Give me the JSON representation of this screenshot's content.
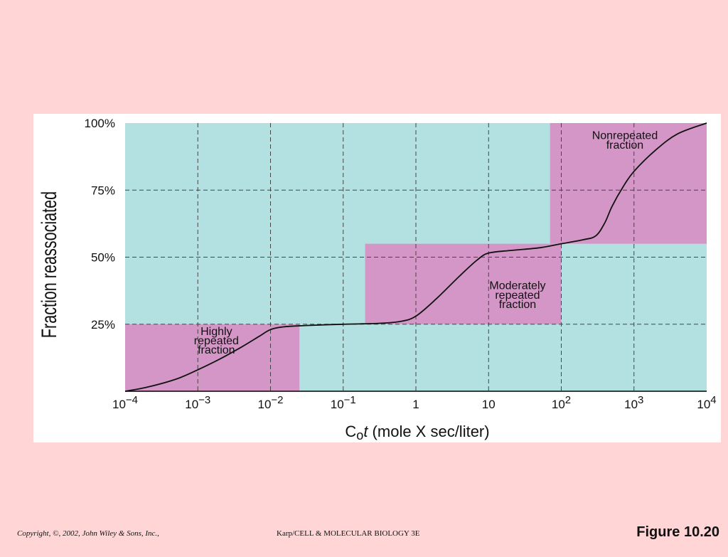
{
  "chart_data": {
    "type": "line",
    "xscale": "log",
    "xlim": [
      0.0001,
      10000
    ],
    "ylim": [
      0,
      100
    ],
    "grid": true,
    "x_ticks": [
      {
        "value": 0.0001,
        "base": "10",
        "exp": "−4"
      },
      {
        "value": 0.001,
        "base": "10",
        "exp": "−3"
      },
      {
        "value": 0.01,
        "base": "10",
        "exp": "−2"
      },
      {
        "value": 0.1,
        "base": "10",
        "exp": "−1"
      },
      {
        "value": 1,
        "base": "1",
        "exp": ""
      },
      {
        "value": 10,
        "base": "10",
        "exp": ""
      },
      {
        "value": 100,
        "base": "10",
        "exp": "2"
      },
      {
        "value": 1000,
        "base": "10",
        "exp": "3"
      },
      {
        "value": 10000,
        "base": "10",
        "exp": "4"
      }
    ],
    "y_ticks": [
      {
        "value": 25,
        "label": "25%"
      },
      {
        "value": 50,
        "label": "50%"
      },
      {
        "value": 75,
        "label": "75%"
      },
      {
        "value": 100,
        "label": "100%"
      }
    ],
    "ylabel": "Fraction reassociated",
    "xlabel": {
      "c": "C",
      "sub": "o",
      "t": "t",
      "rest": " (mole X sec/liter)"
    },
    "background_color": "#b3e0e0",
    "region_color": "#d496c6",
    "line_color": "#111111",
    "regions": [
      {
        "name": "highly-repeated",
        "x": [
          0.0001,
          0.025
        ],
        "y": [
          0,
          25
        ],
        "label_lines": [
          "Highly",
          "repeated",
          "fraction"
        ],
        "label_x": 0.0018,
        "label_y": [
          21,
          17.5,
          14
        ]
      },
      {
        "name": "moderately-repeated",
        "x": [
          0.2,
          100
        ],
        "y": [
          25,
          55
        ],
        "label_lines": [
          "Moderately",
          "repeated",
          "fraction"
        ],
        "label_x": 25,
        "label_y": [
          38,
          34.5,
          31
        ]
      },
      {
        "name": "nonrepeated",
        "x": [
          70,
          10000
        ],
        "y": [
          55,
          100
        ],
        "label_lines": [
          "Nonrepeated",
          "fraction"
        ],
        "label_x": 750,
        "label_y": [
          94,
          90.5
        ]
      }
    ],
    "series": [
      {
        "x": [
          0.0001,
          0.0002,
          0.0005,
          0.001,
          0.002,
          0.004,
          0.007,
          0.01,
          0.015,
          0.03,
          0.1,
          0.3,
          0.6,
          1,
          2,
          4,
          7,
          10,
          20,
          50,
          100,
          200,
          300,
          400,
          500,
          700,
          1000,
          2000,
          4000,
          10000
        ],
        "y": [
          0,
          1.5,
          4.5,
          8,
          12,
          16.5,
          20.5,
          23,
          24,
          24.5,
          25,
          25.3,
          26,
          28,
          35,
          43,
          49,
          51.5,
          52.5,
          53.5,
          55,
          56.5,
          58,
          63,
          69,
          76,
          82,
          90,
          96,
          100
        ]
      }
    ]
  },
  "footer": {
    "copyright": "Copyright, ©, 2002, John Wiley & Sons, Inc.,",
    "book": "Karp/CELL & MOLECULAR BIOLOGY 3E",
    "figure": "Figure 10.20"
  }
}
